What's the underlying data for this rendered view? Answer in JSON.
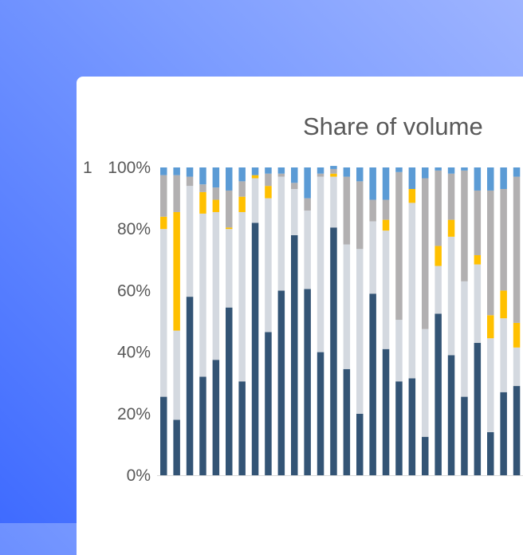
{
  "chart_data": {
    "type": "bar",
    "stacked": true,
    "title": "Share of volume",
    "xlabel": "",
    "ylabel": "",
    "ylim": [
      0,
      100
    ],
    "y_ticks": [
      "0%",
      "20%",
      "40%",
      "60%",
      "80%",
      "100%"
    ],
    "cut_off_label": "1",
    "grid": false,
    "colors": {
      "navy": "#335475",
      "lightgray": "#d4d9e0",
      "yellow": "#ffc000",
      "gray": "#b2b0b1",
      "blue": "#5b9bd5"
    },
    "series": [
      {
        "color_key": "navy",
        "values": [
          25.5,
          18,
          58,
          32,
          37.5,
          54.5,
          30.5,
          82,
          46.5,
          60,
          78,
          60.5,
          40,
          80.5,
          34.5,
          20,
          59,
          41,
          30.5,
          31.5,
          12.5,
          52.5,
          39,
          25.5,
          43,
          14,
          27,
          29
        ]
      },
      {
        "color_key": "lightgray",
        "values": [
          54.5,
          29,
          36,
          53,
          48,
          25.5,
          55,
          14.5,
          43.5,
          37,
          15,
          25.5,
          57,
          16.5,
          40.5,
          53.5,
          23.5,
          38.5,
          20,
          57,
          35,
          15.5,
          38.5,
          37.5,
          25.5,
          30.5,
          24,
          12.5
        ]
      },
      {
        "color_key": "yellow",
        "values": [
          4,
          38.5,
          0,
          7,
          4,
          0.5,
          5,
          1,
          4,
          0,
          0,
          0,
          0,
          1,
          0,
          0,
          0,
          3.5,
          0,
          4.5,
          0,
          6.5,
          5.5,
          0,
          3,
          7.5,
          9,
          8
        ]
      },
      {
        "color_key": "gray",
        "values": [
          13.5,
          12,
          3,
          2.5,
          4,
          12,
          5,
          0,
          4,
          1,
          2,
          4,
          1,
          1.5,
          22,
          22,
          7,
          6.5,
          48,
          0,
          49,
          24.5,
          15,
          36,
          21,
          40.5,
          33,
          47.5
        ]
      },
      {
        "color_key": "blue",
        "values": [
          2.5,
          2.5,
          3,
          5.5,
          6.5,
          7.5,
          4.5,
          2.5,
          2,
          2,
          5,
          10,
          2,
          1,
          3,
          4.5,
          10.5,
          10.5,
          1.5,
          7,
          3.5,
          1,
          2,
          1,
          7.5,
          7.5,
          7,
          3
        ]
      }
    ]
  }
}
